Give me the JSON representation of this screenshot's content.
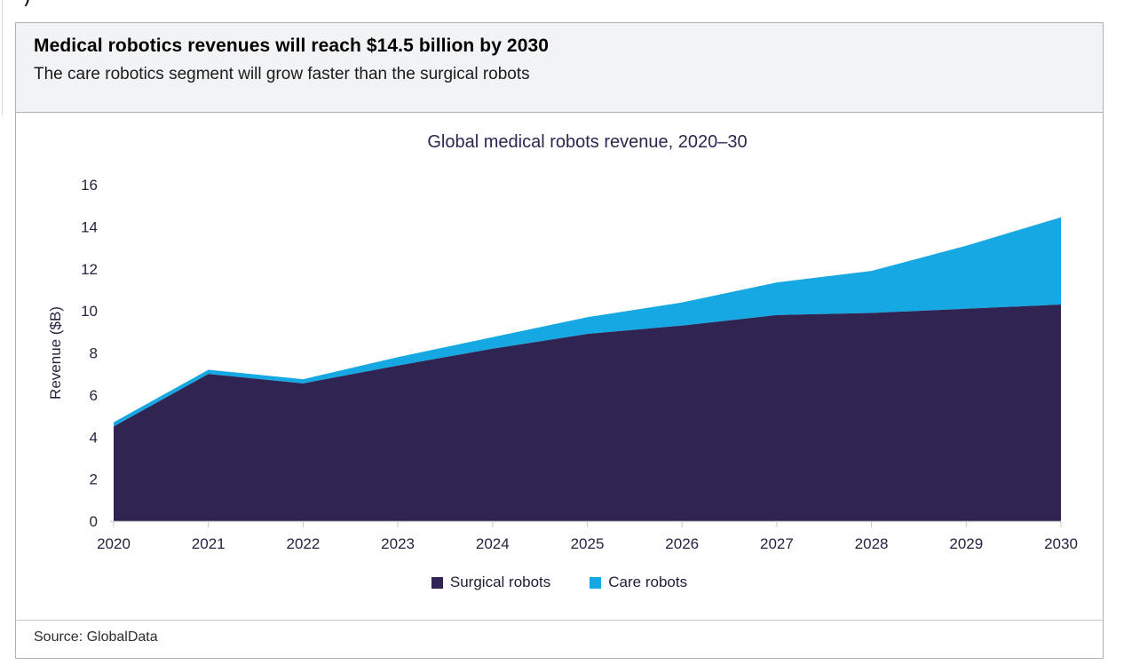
{
  "page": {
    "cropped_fragment": ")"
  },
  "header": {
    "title": "Medical robotics revenues will reach $14.5 billion by 2030",
    "subtitle": "The care robotics segment will grow faster than the surgical robots"
  },
  "chart_data": {
    "type": "area",
    "stacked": true,
    "title": "Global medical robots revenue, 2020–30",
    "xlabel": "",
    "ylabel": "Revenue ($B)",
    "categories": [
      "2020",
      "2021",
      "2022",
      "2023",
      "2024",
      "2025",
      "2026",
      "2027",
      "2028",
      "2029",
      "2030"
    ],
    "series": [
      {
        "name": "Surgical robots",
        "color": "#2F2452",
        "values": [
          4.5,
          7.0,
          6.55,
          7.4,
          8.2,
          8.9,
          9.3,
          9.8,
          9.9,
          10.1,
          10.3
        ]
      },
      {
        "name": "Care robots",
        "color": "#16A8E2",
        "values": [
          0.2,
          0.2,
          0.2,
          0.4,
          0.55,
          0.8,
          1.1,
          1.55,
          2.0,
          3.0,
          4.15
        ]
      }
    ],
    "totals": [
      4.7,
      7.2,
      6.75,
      7.8,
      8.75,
      9.7,
      10.4,
      11.35,
      11.9,
      13.1,
      14.45
    ],
    "ylim": [
      0,
      16
    ],
    "yticks": [
      0,
      2,
      4,
      6,
      8,
      10,
      12,
      14,
      16
    ],
    "grid": false,
    "legend_position": "bottom"
  },
  "source": {
    "label": "Source: GlobalData"
  }
}
